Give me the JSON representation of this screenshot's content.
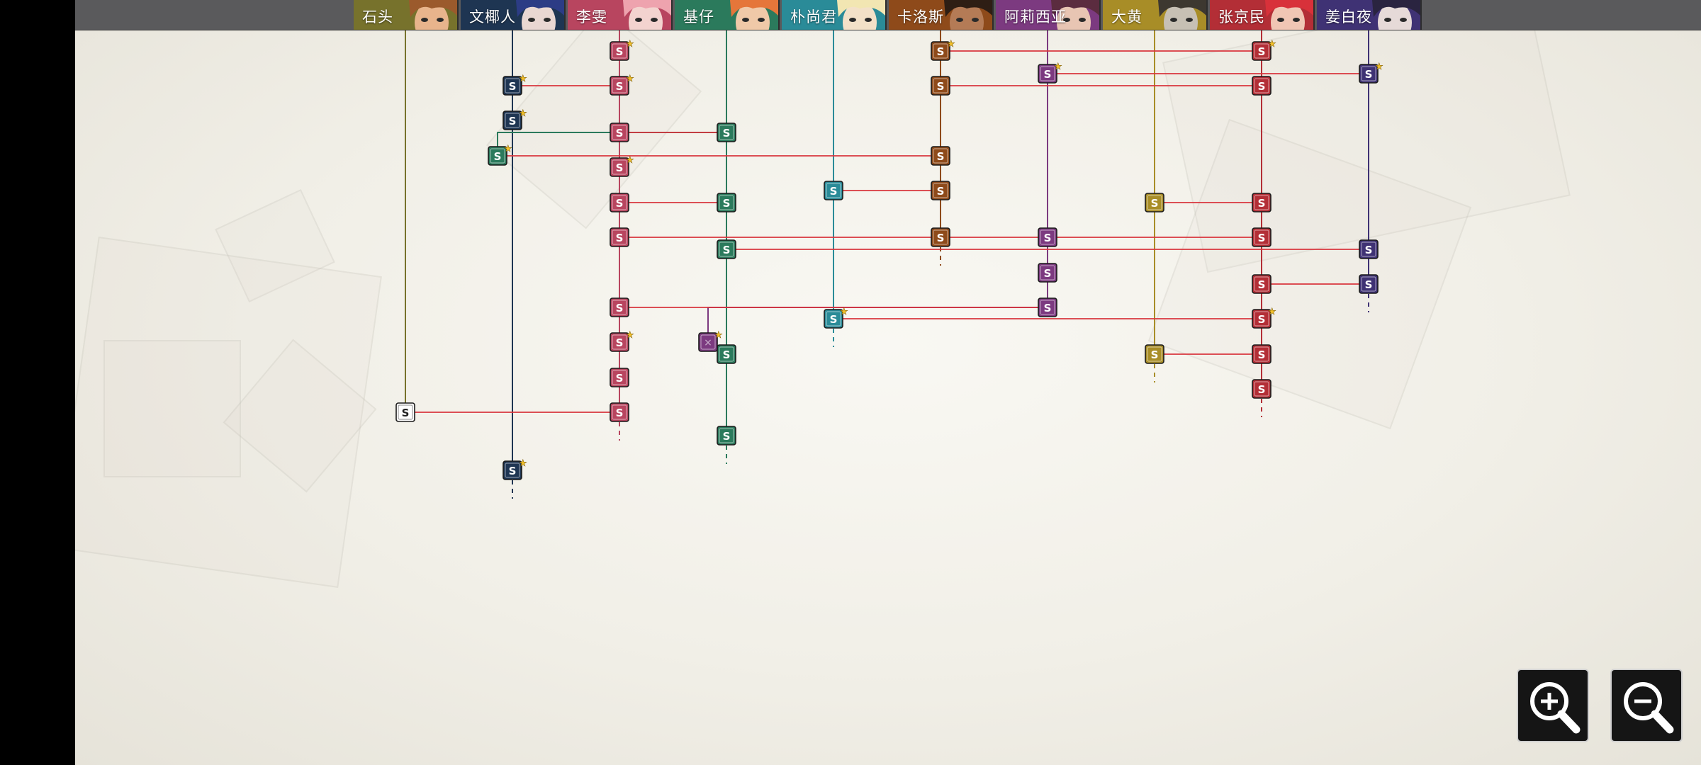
{
  "node_letter": "S",
  "characters": [
    {
      "name": "石头",
      "color": "#77722c",
      "skin": "#e8b48c",
      "hair": "#9b5a2c"
    },
    {
      "name": "文椰人",
      "color": "#1e3552",
      "skin": "#e9d7d2",
      "hair": "#2c3c85"
    },
    {
      "name": "李雯",
      "color": "#b8455f",
      "skin": "#f3d3cf",
      "hair": "#eea3ae"
    },
    {
      "name": "基仔",
      "color": "#2b7a5c",
      "skin": "#f0c9a8",
      "hair": "#e5763a"
    },
    {
      "name": "朴尚君",
      "color": "#2a8b98",
      "skin": "#f3e1c8",
      "hair": "#f2e6b2"
    },
    {
      "name": "卡洛斯",
      "color": "#8e4a1a",
      "skin": "#b47b56",
      "hair": "#2e1e14"
    },
    {
      "name": "阿莉西亚",
      "color": "#7c3a80",
      "skin": "#e8c5b3",
      "hair": "#5b2c3f"
    },
    {
      "name": "大黄",
      "color": "#a88d27",
      "skin": "#c7c0b4",
      "hair": "#3d3830"
    },
    {
      "name": "张京民",
      "color": "#b32e36",
      "skin": "#f0c6b4",
      "hair": "#d8313a"
    },
    {
      "name": "姜白夜",
      "color": "#3f3274",
      "skin": "#e6dad8",
      "hair": "#2a2440"
    }
  ],
  "graph": {
    "nodes": [
      {
        "id": "a1",
        "char": 2,
        "row": 72,
        "star": true
      },
      {
        "id": "a2",
        "char": 2,
        "row": 121,
        "star": true
      },
      {
        "id": "a3",
        "char": 2,
        "row": 187
      },
      {
        "id": "a4",
        "char": 2,
        "row": 236,
        "star": true
      },
      {
        "id": "a5",
        "char": 2,
        "row": 286
      },
      {
        "id": "a6",
        "char": 2,
        "row": 335
      },
      {
        "id": "a7",
        "char": 2,
        "row": 434
      },
      {
        "id": "a8",
        "char": 2,
        "row": 483,
        "star": true
      },
      {
        "id": "a9",
        "char": 2,
        "row": 533
      },
      {
        "id": "a10",
        "char": 2,
        "row": 582
      },
      {
        "id": "w1",
        "char": 1,
        "row": 121,
        "star": true
      },
      {
        "id": "w2",
        "char": 1,
        "row": 170,
        "star": true
      },
      {
        "id": "w3",
        "char": 1,
        "row": 664,
        "star": true
      },
      {
        "id": "k1",
        "char": 3,
        "row": 187
      },
      {
        "id": "k2",
        "col": 702,
        "lineChar": 3,
        "row": 220,
        "star": true
      },
      {
        "id": "k3",
        "char": 3,
        "row": 286
      },
      {
        "id": "k4",
        "char": 3,
        "row": 352
      },
      {
        "id": "k5",
        "char": 3,
        "row": 500
      },
      {
        "id": "k6",
        "char": 3,
        "row": 615
      },
      {
        "id": "p1",
        "char": 4,
        "row": 269
      },
      {
        "id": "p2",
        "char": 4,
        "row": 450,
        "star": true
      },
      {
        "id": "c1",
        "char": 5,
        "row": 72,
        "star": true
      },
      {
        "id": "c2",
        "char": 5,
        "row": 121
      },
      {
        "id": "c3",
        "char": 5,
        "row": 220
      },
      {
        "id": "c4",
        "char": 5,
        "row": 269
      },
      {
        "id": "c5",
        "char": 5,
        "row": 335
      },
      {
        "id": "al1",
        "char": 6,
        "row": 104,
        "star": true
      },
      {
        "id": "al2",
        "char": 6,
        "row": 335
      },
      {
        "id": "al3",
        "char": 6,
        "row": 385
      },
      {
        "id": "al4",
        "char": 6,
        "row": 434
      },
      {
        "id": "al5",
        "col": 999,
        "lineChar": 6,
        "row": 483,
        "star": true,
        "locked": true
      },
      {
        "id": "d1",
        "char": 7,
        "row": 286
      },
      {
        "id": "d2",
        "char": 7,
        "row": 500
      },
      {
        "id": "z1",
        "char": 8,
        "row": 72,
        "star": true
      },
      {
        "id": "z2",
        "char": 8,
        "row": 121
      },
      {
        "id": "z3",
        "char": 8,
        "row": 286
      },
      {
        "id": "z4",
        "char": 8,
        "row": 335
      },
      {
        "id": "z5",
        "char": 8,
        "row": 401
      },
      {
        "id": "z6",
        "char": 8,
        "row": 450,
        "star": true
      },
      {
        "id": "z7",
        "char": 8,
        "row": 500
      },
      {
        "id": "z8",
        "char": 8,
        "row": 549
      },
      {
        "id": "j1",
        "char": 9,
        "row": 104,
        "star": true
      },
      {
        "id": "j2",
        "char": 9,
        "row": 352
      },
      {
        "id": "j3",
        "char": 9,
        "row": 401
      },
      {
        "id": "s1",
        "char": 0,
        "row": 582,
        "white": true
      }
    ],
    "links": [
      [
        "c1",
        "z1"
      ],
      [
        "al1",
        "j1"
      ],
      [
        "w1",
        "a2"
      ],
      [
        "c2",
        "z2"
      ],
      [
        "a3",
        "k1"
      ],
      [
        "k2",
        "c3"
      ],
      [
        "p1",
        "c4"
      ],
      [
        "d1",
        "z3"
      ],
      [
        "a5",
        "k3"
      ],
      [
        "a6",
        "z4"
      ],
      [
        "k4",
        "j2"
      ],
      [
        "z5",
        "j3"
      ],
      [
        "a7",
        "al4"
      ],
      [
        "p2",
        "z6"
      ],
      [
        "d2",
        "z7"
      ],
      [
        "s1",
        "a10"
      ]
    ],
    "branches": [
      [
        "k1",
        "k2"
      ],
      [
        "al4",
        "al5"
      ]
    ],
    "columns": [
      {
        "char": 0,
        "start": 28,
        "end": 582,
        "dash": false
      },
      {
        "char": 1,
        "start": 28,
        "end": 664,
        "dash": true
      },
      {
        "char": 2,
        "start": 28,
        "end": 582,
        "dash": true
      },
      {
        "char": 3,
        "start": 28,
        "end": 615,
        "dash": true
      },
      {
        "char": 4,
        "start": 28,
        "end": 450,
        "dash": true
      },
      {
        "char": 5,
        "start": 28,
        "end": 335,
        "dash": true
      },
      {
        "char": 6,
        "start": 28,
        "end": 434,
        "dash": false
      },
      {
        "char": 7,
        "start": 28,
        "end": 500,
        "dash": true
      },
      {
        "char": 8,
        "start": 28,
        "end": 549,
        "dash": true
      },
      {
        "char": 9,
        "start": 28,
        "end": 401,
        "dash": true
      }
    ],
    "link_color": "#d9363e"
  },
  "controls": {
    "zoom_in_icon": "zoom-in-icon",
    "zoom_out_icon": "zoom-out-icon"
  }
}
